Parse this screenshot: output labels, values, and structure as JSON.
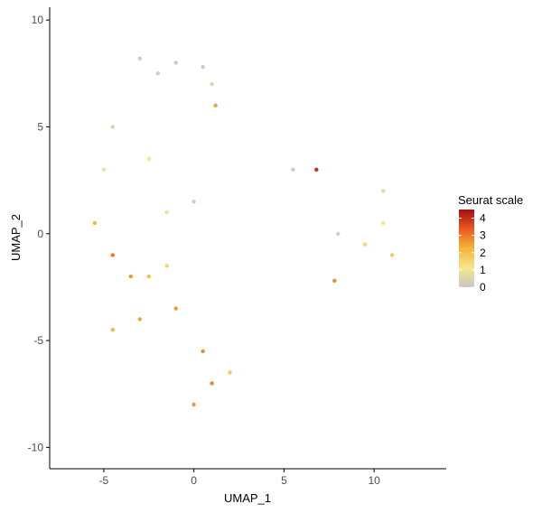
{
  "chart_data": {
    "type": "scatter",
    "title": "",
    "xlabel": "UMAP_1",
    "ylabel": "UMAP_2",
    "xlim": [
      -8,
      14
    ],
    "ylim": [
      -11,
      10.6
    ],
    "xticks": [
      -5,
      0,
      5,
      10
    ],
    "yticks": [
      -10,
      -5,
      0,
      5,
      10
    ],
    "grid": false,
    "legend": {
      "title": "Seurat scale",
      "placement": "right",
      "ticks": [
        0,
        1,
        2,
        3,
        4
      ],
      "range": [
        0,
        4.5
      ],
      "colors": [
        "#c8c8c8",
        "#f6e58d",
        "#f5b53a",
        "#ea5a1f",
        "#a50f15"
      ]
    },
    "points": [
      {
        "x": -3.0,
        "y": 8.2,
        "v": 0.1
      },
      {
        "x": -2.0,
        "y": 7.5,
        "v": 0.3
      },
      {
        "x": -1.0,
        "y": 8.0,
        "v": 0.2
      },
      {
        "x": 0.5,
        "y": 7.8,
        "v": 0.1
      },
      {
        "x": 1.0,
        "y": 7.0,
        "v": 0.6
      },
      {
        "x": 1.2,
        "y": 6.0,
        "v": 2.5
      },
      {
        "x": -4.5,
        "y": 5.0,
        "v": 0.4
      },
      {
        "x": -5.0,
        "y": 3.0,
        "v": 1.0
      },
      {
        "x": -2.5,
        "y": 3.5,
        "v": 1.2
      },
      {
        "x": -1.5,
        "y": 1.0,
        "v": 1.0
      },
      {
        "x": 0.0,
        "y": 1.5,
        "v": 0.3
      },
      {
        "x": -5.5,
        "y": 0.5,
        "v": 2.2
      },
      {
        "x": -4.5,
        "y": -1.0,
        "v": 3.0
      },
      {
        "x": -3.5,
        "y": -2.0,
        "v": 2.6
      },
      {
        "x": -2.5,
        "y": -2.0,
        "v": 2.0
      },
      {
        "x": -1.5,
        "y": -1.5,
        "v": 1.6
      },
      {
        "x": -4.5,
        "y": -4.5,
        "v": 2.2
      },
      {
        "x": -3.0,
        "y": -4.0,
        "v": 2.4
      },
      {
        "x": -1.0,
        "y": -3.5,
        "v": 2.6
      },
      {
        "x": 0.5,
        "y": -5.5,
        "v": 2.8
      },
      {
        "x": 1.0,
        "y": -7.0,
        "v": 2.9
      },
      {
        "x": 0.0,
        "y": -8.0,
        "v": 2.6
      },
      {
        "x": 2.0,
        "y": -6.5,
        "v": 1.8
      },
      {
        "x": 5.5,
        "y": 3.0,
        "v": 0.2
      },
      {
        "x": 6.8,
        "y": 3.0,
        "v": 4.0
      },
      {
        "x": 8.0,
        "y": 0.0,
        "v": 0.3
      },
      {
        "x": 9.5,
        "y": -0.5,
        "v": 1.5
      },
      {
        "x": 10.5,
        "y": 0.5,
        "v": 1.2
      },
      {
        "x": 11.0,
        "y": -1.0,
        "v": 1.8
      },
      {
        "x": 7.8,
        "y": -2.2,
        "v": 2.8
      },
      {
        "x": 10.5,
        "y": 2.0,
        "v": 0.6
      }
    ]
  }
}
